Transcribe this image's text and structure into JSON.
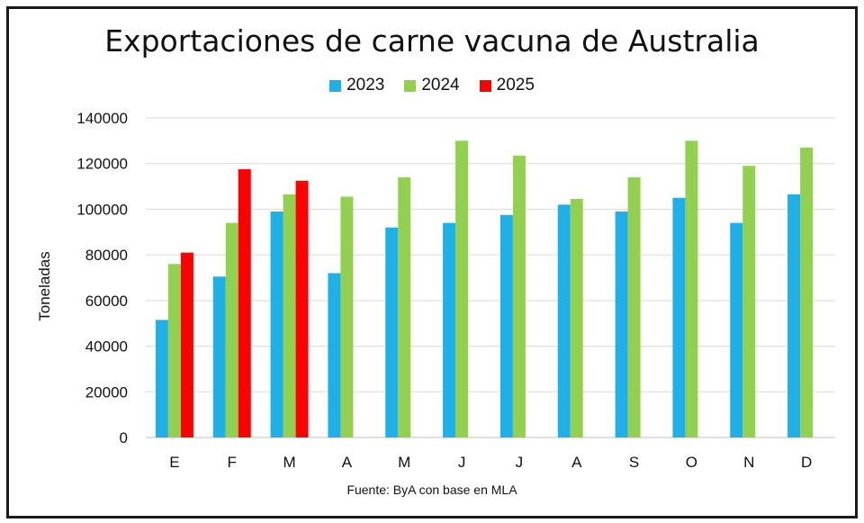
{
  "chart_data": {
    "type": "bar",
    "title": "Exportaciones de carne vacuna de Australia",
    "xlabel": "",
    "ylabel": "Toneladas",
    "source": "Fuente: ByA con base en MLA",
    "categories": [
      "E",
      "F",
      "M",
      "A",
      "M",
      "J",
      "J",
      "A",
      "S",
      "O",
      "N",
      "D"
    ],
    "ylim": [
      0,
      140000
    ],
    "yticks": [
      0,
      20000,
      40000,
      60000,
      80000,
      100000,
      120000,
      140000
    ],
    "ytick_labels": [
      "0",
      "20000",
      "40000",
      "60000",
      "80000",
      "100000",
      "120000",
      "140000"
    ],
    "grid": true,
    "legend_position": "top",
    "series": [
      {
        "name": "2023",
        "color": "#1fb0e8",
        "values": [
          51500,
          70500,
          99000,
          72000,
          92000,
          94000,
          97500,
          102000,
          99000,
          105000,
          94000,
          106500
        ]
      },
      {
        "name": "2024",
        "color": "#92d050",
        "values": [
          76000,
          94000,
          106500,
          105500,
          114000,
          130000,
          123500,
          104500,
          114000,
          130000,
          119000,
          127000
        ]
      },
      {
        "name": "2025",
        "color": "#ff0000",
        "values": [
          81000,
          117500,
          112500,
          null,
          null,
          null,
          null,
          null,
          null,
          null,
          null,
          null
        ]
      }
    ]
  }
}
